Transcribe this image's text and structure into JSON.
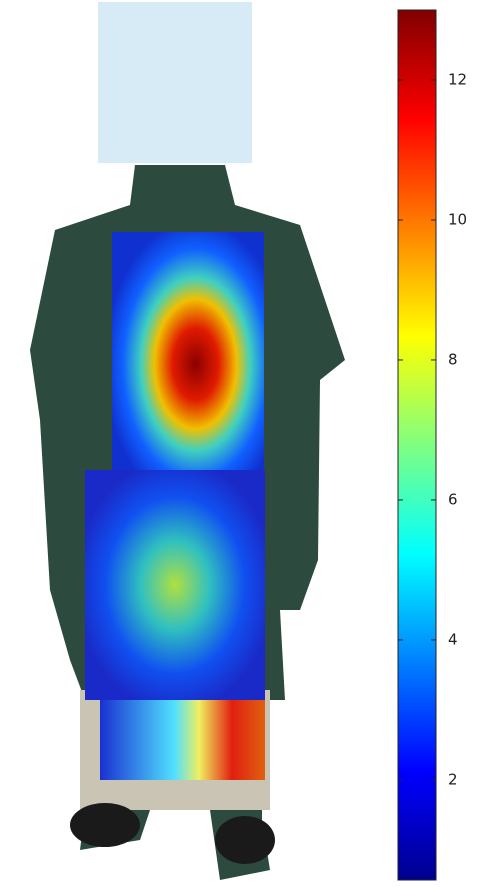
{
  "colorbar": {
    "colormap": "jet",
    "clim": [
      0.57,
      13.0
    ],
    "ticks": [
      2,
      4,
      6,
      8,
      10,
      12
    ]
  }
}
